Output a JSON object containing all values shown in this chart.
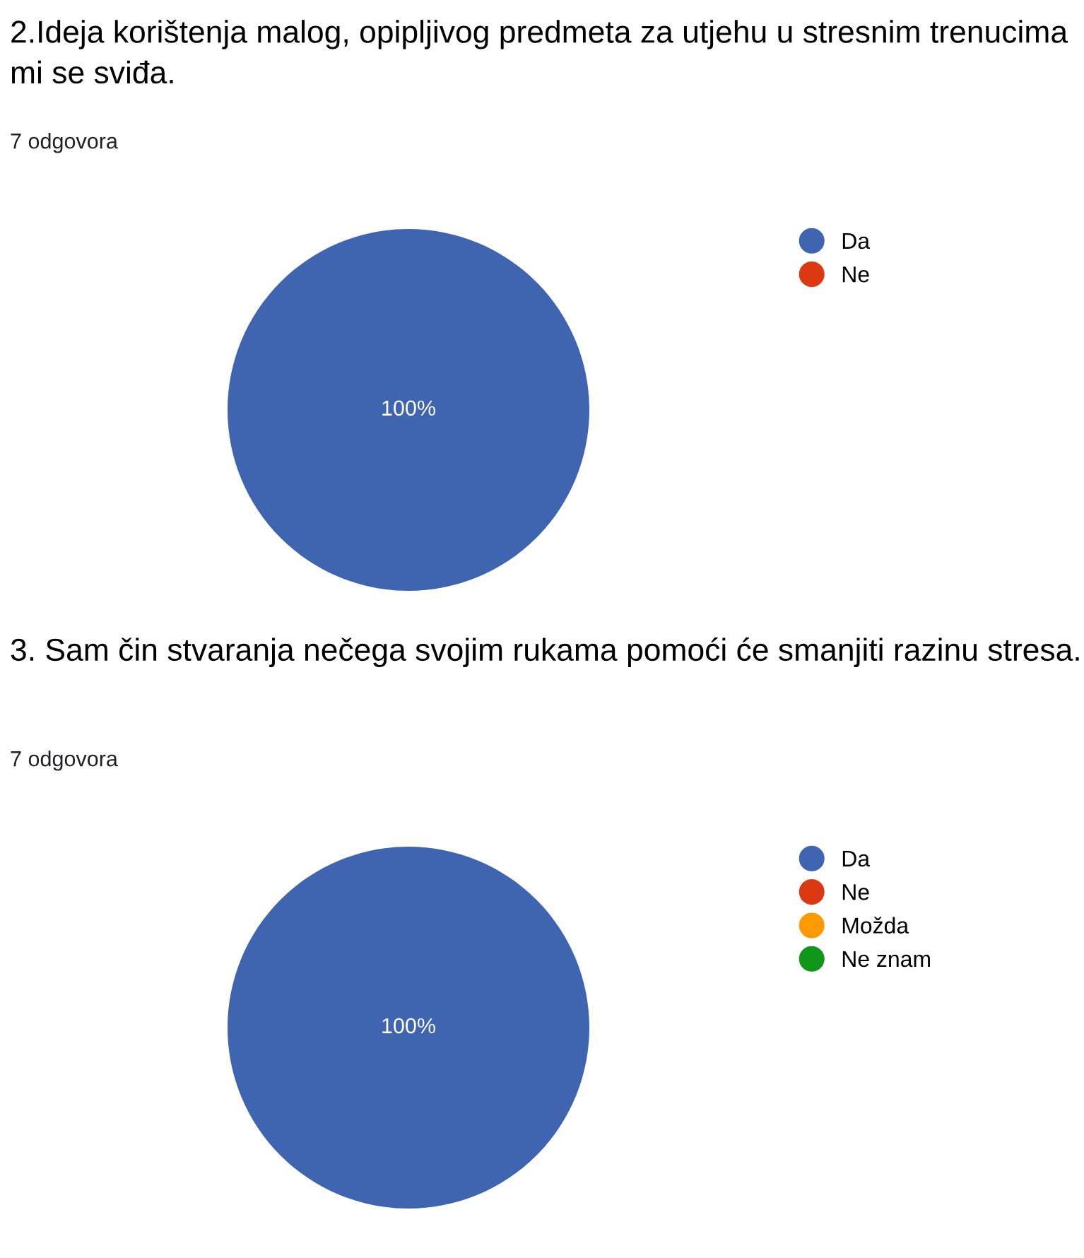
{
  "chart_data": [
    {
      "type": "pie",
      "title": "2.Ideja korištenja malog, opipljivog predmeta za utjehu u stresnim trenucima mi se sviđa.",
      "subtitle": "7 odgovora",
      "categories": [
        "Da",
        "Ne"
      ],
      "values": [
        100,
        0
      ],
      "colors": [
        "#3f64b0",
        "#dc3912"
      ],
      "value_labels": [
        "100%",
        null
      ],
      "legend": "right"
    },
    {
      "type": "pie",
      "title": "3. Sam čin stvaranja nečega svojim rukama pomoći će smanjiti razinu stresa.",
      "subtitle": "7 odgovora",
      "categories": [
        "Da",
        "Ne",
        "Možda",
        "Ne znam"
      ],
      "values": [
        100,
        0,
        0,
        0
      ],
      "colors": [
        "#3f64b0",
        "#dc3912",
        "#ff9900",
        "#109618"
      ],
      "value_labels": [
        "100%",
        null,
        null,
        null
      ],
      "legend": "right"
    }
  ]
}
